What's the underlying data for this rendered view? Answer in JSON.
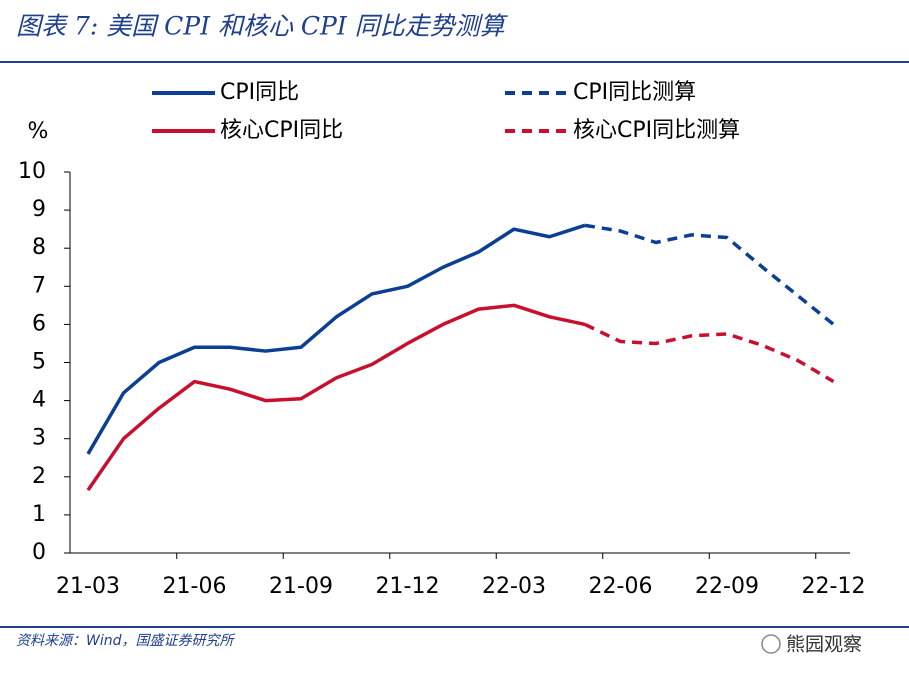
{
  "header": {
    "title": "图表 7:  美国 CPI 和核心 CPI 同比走势测算"
  },
  "chart_data": {
    "type": "line",
    "y_label": "%",
    "categories": [
      "21-03",
      null,
      null,
      "21-06",
      null,
      null,
      "21-09",
      null,
      null,
      "21-12",
      null,
      null,
      "22-03",
      null,
      null,
      "22-06",
      null,
      null,
      "22-09",
      null,
      null,
      "22-12"
    ],
    "series": [
      {
        "name": "CPI同比",
        "color": "#0b3f93",
        "dashed": false,
        "values": [
          2.6,
          4.2,
          5.0,
          5.4,
          5.4,
          5.3,
          5.4,
          6.2,
          6.8,
          7.0,
          7.5,
          7.9,
          8.5,
          8.3,
          8.6,
          null,
          null,
          null,
          null,
          null,
          null,
          null
        ]
      },
      {
        "name": "CPI同比测算",
        "color": "#0b3f93",
        "dashed": true,
        "values": [
          null,
          null,
          null,
          null,
          null,
          null,
          null,
          null,
          null,
          null,
          null,
          null,
          null,
          null,
          8.6,
          8.45,
          8.15,
          8.35,
          8.28,
          7.5,
          6.75,
          6.0
        ]
      },
      {
        "name": "核心CPI同比",
        "color": "#c8102e",
        "dashed": false,
        "values": [
          1.65,
          3.0,
          3.8,
          4.5,
          4.3,
          4.0,
          4.05,
          4.6,
          4.95,
          5.5,
          6.0,
          6.4,
          6.5,
          6.2,
          6.0,
          null,
          null,
          null,
          null,
          null,
          null,
          null
        ]
      },
      {
        "name": "核心CPI同比测算",
        "color": "#c8102e",
        "dashed": true,
        "values": [
          null,
          null,
          null,
          null,
          null,
          null,
          null,
          null,
          null,
          null,
          null,
          null,
          null,
          null,
          6.0,
          5.55,
          5.5,
          5.7,
          5.75,
          5.45,
          5.05,
          4.5
        ]
      }
    ],
    "ylim": [
      0,
      10
    ],
    "yticks": [
      0,
      1,
      2,
      3,
      4,
      5,
      6,
      7,
      8,
      9,
      10
    ],
    "grid": false
  },
  "footer": {
    "source": "资料来源：Wind，国盛证券研究所",
    "watermark": "熊园观察"
  }
}
